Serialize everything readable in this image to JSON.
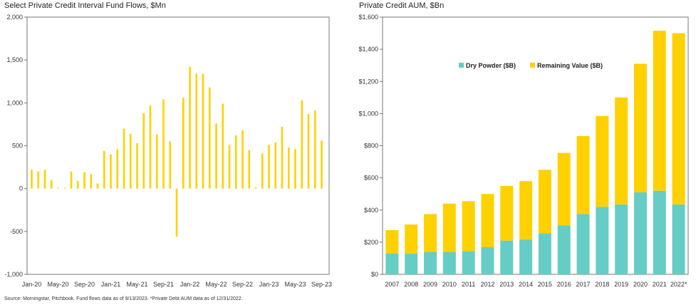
{
  "chart_data": [
    {
      "type": "bar",
      "title": "Select Private Credit Interval Fund Flows, $Mn",
      "xlabel": "",
      "ylabel": "",
      "ylim": [
        -1000,
        2000
      ],
      "yticks": [
        -1000,
        -500,
        0,
        500,
        1000,
        1500,
        2000
      ],
      "ytick_labels": [
        "-1,000",
        "-500",
        "0",
        "500",
        "1,000",
        "1,500",
        "2,000"
      ],
      "grid": false,
      "color": "#FFD100",
      "categories": [
        "Jan-20",
        "Feb-20",
        "Mar-20",
        "Apr-20",
        "May-20",
        "Jun-20",
        "Jul-20",
        "Aug-20",
        "Sep-20",
        "Oct-20",
        "Nov-20",
        "Dec-20",
        "Jan-21",
        "Feb-21",
        "Mar-21",
        "Apr-21",
        "May-21",
        "Jun-21",
        "Jul-21",
        "Aug-21",
        "Sep-21",
        "Oct-21",
        "Nov-21",
        "Dec-21",
        "Jan-22",
        "Feb-22",
        "Mar-22",
        "Apr-22",
        "May-22",
        "Jun-22",
        "Jul-22",
        "Aug-22",
        "Sep-22",
        "Oct-22",
        "Nov-22",
        "Dec-22",
        "Jan-23",
        "Feb-23",
        "Mar-23",
        "Apr-23",
        "May-23",
        "Jun-23",
        "Jul-23",
        "Aug-23",
        "Sep-23"
      ],
      "values": [
        220,
        200,
        220,
        100,
        10,
        10,
        200,
        90,
        190,
        170,
        60,
        440,
        400,
        460,
        700,
        640,
        530,
        880,
        970,
        630,
        1040,
        550,
        -560,
        1060,
        1420,
        1340,
        1340,
        1180,
        760,
        990,
        510,
        620,
        680,
        450,
        15,
        410,
        510,
        540,
        720,
        480,
        460,
        1030,
        870,
        910,
        560
      ],
      "xtick_labels": [
        "Jan-20",
        "May-20",
        "Sep-20",
        "Jan-21",
        "May-21",
        "Sep-21",
        "Jan-22",
        "May-22",
        "Sep-22",
        "Jan-23",
        "May-23",
        "Sep-23"
      ]
    },
    {
      "type": "bar",
      "stacked": true,
      "title": "Private Credit AUM, $Bn",
      "xlabel": "",
      "ylabel": "",
      "ylim": [
        0,
        1600
      ],
      "yticks": [
        0,
        200,
        400,
        600,
        800,
        1000,
        1200,
        1400,
        1600
      ],
      "ytick_labels": [
        "$0",
        "$200",
        "$400",
        "$600",
        "$800",
        "$1,000",
        "$1,200",
        "$1,400",
        "$1,600"
      ],
      "grid": false,
      "legend_position": "top-center",
      "categories": [
        "2007",
        "2008",
        "2009",
        "2010",
        "2011",
        "2012",
        "2013",
        "2014",
        "2015",
        "2016",
        "2017",
        "2018",
        "2019",
        "2020",
        "2021",
        "2022*"
      ],
      "series": [
        {
          "name": "Dry Powder ($B)",
          "color": "#66CCC6",
          "values": [
            130,
            130,
            140,
            140,
            145,
            170,
            210,
            215,
            255,
            305,
            375,
            420,
            435,
            510,
            520,
            435
          ]
        },
        {
          "name": "Remaining Value ($B)",
          "color": "#FFD100",
          "values": [
            145,
            180,
            235,
            300,
            310,
            330,
            340,
            365,
            395,
            450,
            485,
            565,
            665,
            800,
            995,
            1065
          ]
        }
      ]
    }
  ],
  "source_note": "Source: Morningstar, Pitchbook. Fund flows data as of 9/13/2023. *Private Debt AUM data as of 12/31/2022."
}
